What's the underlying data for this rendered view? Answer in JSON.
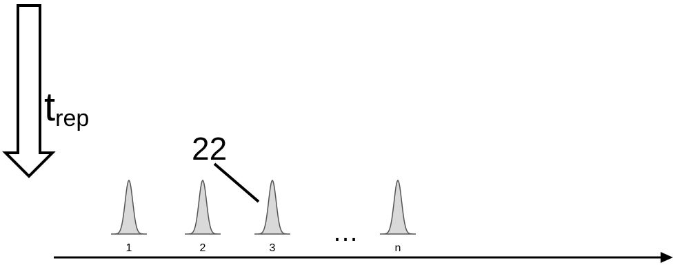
{
  "repetition_arrow": {
    "symbol": "t",
    "subscript": "rep"
  },
  "reference_numeral": "22",
  "pulses": [
    {
      "label": "1"
    },
    {
      "label": "2"
    },
    {
      "label": "3"
    },
    {
      "label": "n"
    }
  ],
  "ellipsis": "…",
  "colors": {
    "line": "#000000",
    "pulse_fill": "#d9d9d9",
    "pulse_stroke": "#555555"
  }
}
